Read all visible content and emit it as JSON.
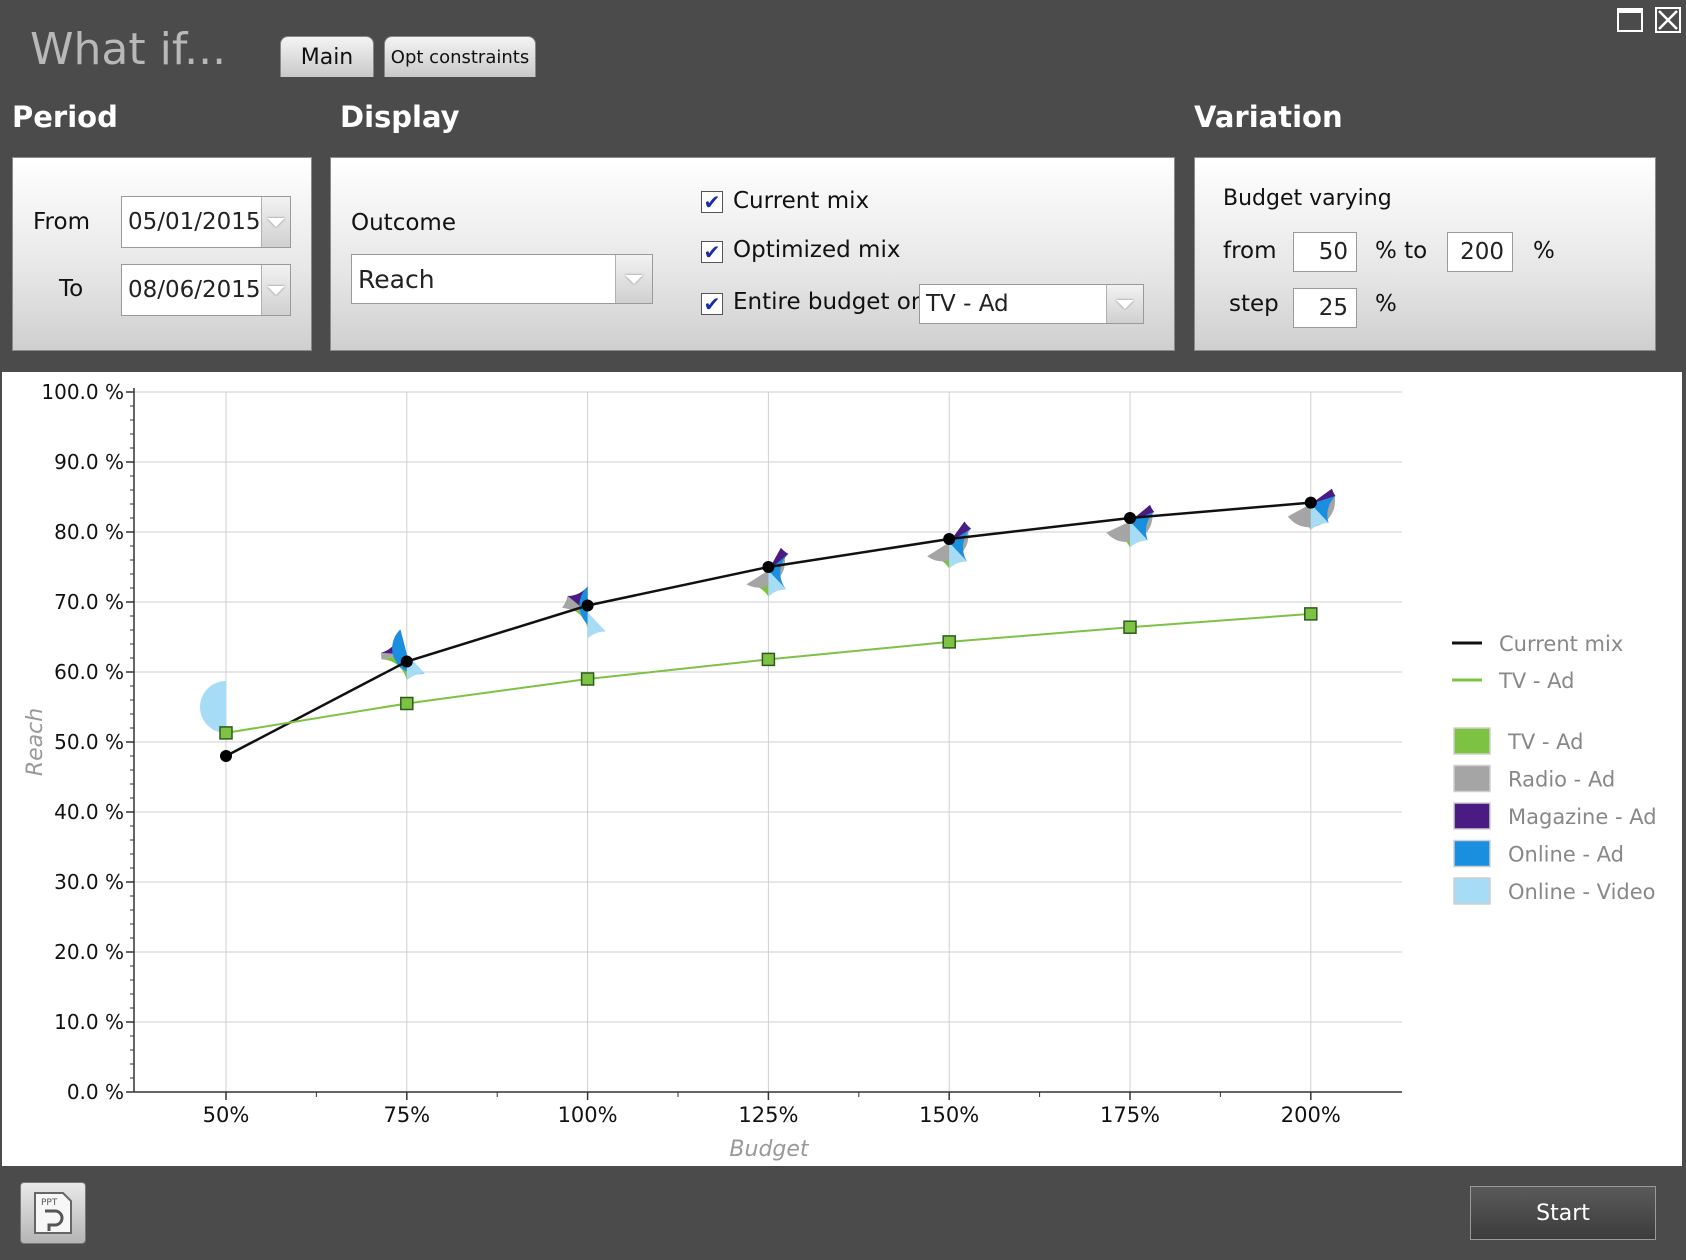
{
  "window": {
    "title": "What if...",
    "tabs": [
      {
        "label": "Main"
      },
      {
        "label": "Opt constraints"
      }
    ]
  },
  "period": {
    "title": "Period",
    "from_label": "From",
    "from_value": "05/01/2015",
    "to_label": "To",
    "to_value": "08/06/2015"
  },
  "display": {
    "title": "Display",
    "outcome_label": "Outcome",
    "outcome_value": "Reach",
    "current_mix_label": "Current mix",
    "current_mix_checked": true,
    "optimized_mix_label": "Optimized mix",
    "optimized_mix_checked": true,
    "entire_budget_label": "Entire budget on",
    "entire_budget_checked": true,
    "entire_budget_value": "TV - Ad"
  },
  "variation": {
    "title": "Variation",
    "budget_varying_label": "Budget varying",
    "from_label": "from",
    "from_value": "50",
    "to_label": "% to",
    "to_value": "200",
    "pct_label": "%",
    "step_label": "step",
    "step_value": "25",
    "step_pct_label": "%"
  },
  "footer": {
    "start_label": "Start",
    "pdf_icon_text": "PPT"
  },
  "chart_data": {
    "type": "line",
    "xlabel": "Budget",
    "ylabel": "Reach",
    "categories": [
      "50%",
      "75%",
      "100%",
      "125%",
      "150%",
      "175%",
      "200%"
    ],
    "ylim": [
      0,
      100
    ],
    "yticks": [
      "0.0 %",
      "10.0 %",
      "20.0 %",
      "30.0 %",
      "40.0 %",
      "50.0 %",
      "60.0 %",
      "70.0 %",
      "80.0 %",
      "90.0 %",
      "100.0 %"
    ],
    "grid": true,
    "legend_position": "right",
    "series": [
      {
        "name": "Current mix",
        "color": "#111111",
        "marker": "circle",
        "values": [
          48.0,
          61.5,
          69.5,
          75.0,
          79.0,
          82.0,
          84.2
        ]
      },
      {
        "name": "TV - Ad",
        "color": "#7dc243",
        "marker": "square",
        "values": [
          51.3,
          55.5,
          59.0,
          61.8,
          64.3,
          66.4,
          68.3
        ]
      }
    ],
    "optimized_mix_pies": [
      {
        "category": "50%",
        "y": 55.0,
        "shares": [
          0.25,
          0.08,
          0.17,
          0.0,
          0.5
        ]
      },
      {
        "category": "75%",
        "y": 62.5,
        "shares": [
          0.22,
          0.04,
          0.2,
          0.42,
          0.12
        ]
      },
      {
        "category": "100%",
        "y": 68.5,
        "shares": [
          0.28,
          0.08,
          0.14,
          0.38,
          0.12
        ]
      },
      {
        "category": "125%",
        "y": 74.5,
        "shares": [
          0.16,
          0.42,
          0.06,
          0.24,
          0.12
        ]
      },
      {
        "category": "150%",
        "y": 78.5,
        "shares": [
          0.16,
          0.44,
          0.06,
          0.22,
          0.12
        ]
      },
      {
        "category": "175%",
        "y": 81.5,
        "shares": [
          0.18,
          0.46,
          0.05,
          0.19,
          0.12
        ]
      },
      {
        "category": "200%",
        "y": 84.0,
        "shares": [
          0.17,
          0.48,
          0.05,
          0.18,
          0.12
        ]
      }
    ],
    "line_legend": [
      {
        "label": "Current mix",
        "color": "#111111"
      },
      {
        "label": "TV - Ad",
        "color": "#7dc243"
      }
    ],
    "channel_legend": [
      {
        "label": "TV - Ad",
        "color": "#7dc243"
      },
      {
        "label": "Radio - Ad",
        "color": "#a5a5a5"
      },
      {
        "label": "Magazine - Ad",
        "color": "#4b1b84"
      },
      {
        "label": "Online - Ad",
        "color": "#1a8fdf"
      },
      {
        "label": "Online - Video",
        "color": "#a7dcf6"
      }
    ]
  }
}
